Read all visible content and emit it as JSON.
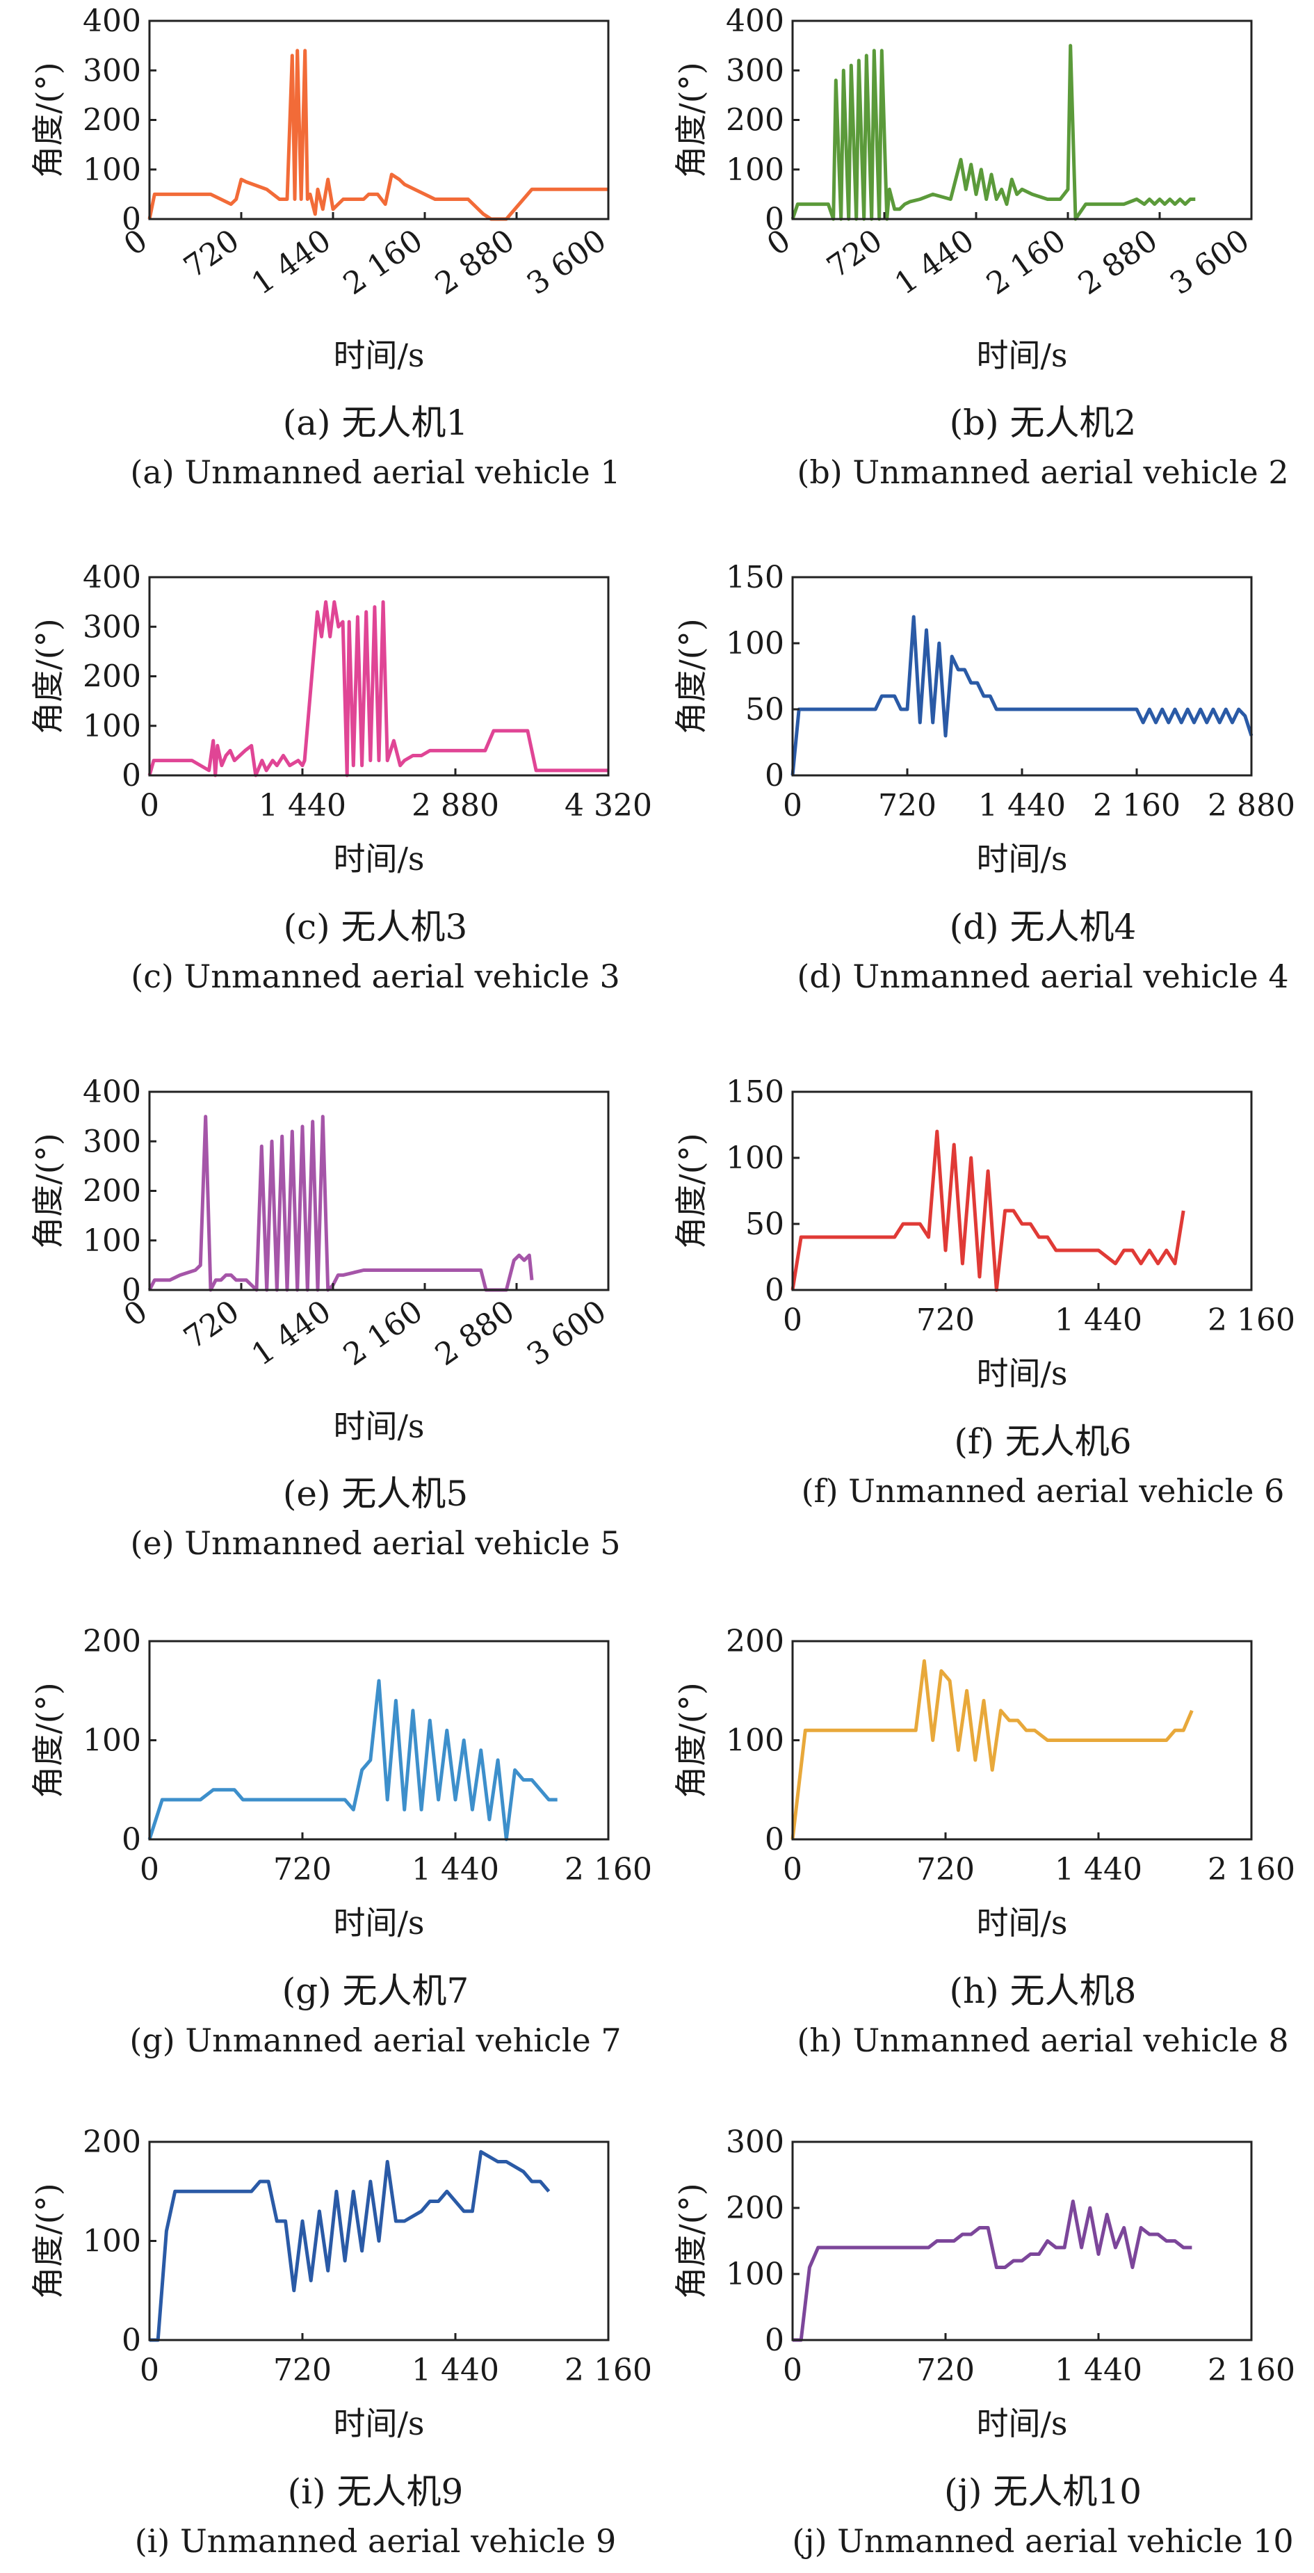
{
  "figure": {
    "panels": [
      {
        "caption_cn": "(a) 无人机1",
        "caption_en": "(a) Unmanned aerial vehicle 1"
      },
      {
        "caption_cn": "(b) 无人机2",
        "caption_en": "(b) Unmanned aerial vehicle 2"
      },
      {
        "caption_cn": "(c) 无人机3",
        "caption_en": "(c) Unmanned aerial vehicle 3"
      },
      {
        "caption_cn": "(d) 无人机4",
        "caption_en": "(d) Unmanned aerial vehicle 4"
      },
      {
        "caption_cn": "(e) 无人机5",
        "caption_en": "(e) Unmanned aerial vehicle 5"
      },
      {
        "caption_cn": "(f) 无人机6",
        "caption_en": "(f) Unmanned aerial vehicle 6"
      },
      {
        "caption_cn": "(g) 无人机7",
        "caption_en": "(g) Unmanned aerial vehicle 7"
      },
      {
        "caption_cn": "(h) 无人机8",
        "caption_en": "(h) Unmanned aerial vehicle 8"
      },
      {
        "caption_cn": "(i) 无人机9",
        "caption_en": "(i) Unmanned aerial vehicle 9"
      },
      {
        "caption_cn": "(j) 无人机10",
        "caption_en": "(j) Unmanned aerial vehicle 10"
      }
    ]
  },
  "chart_data": [
    {
      "type": "line",
      "xlabel": "时间/s",
      "ylabel": "角度/(°)",
      "xlim": [
        0,
        3600
      ],
      "ylim": [
        0,
        400
      ],
      "xticks": [
        0,
        720,
        1440,
        2160,
        2880,
        3600
      ],
      "xtick_labels": [
        "0",
        "720",
        "1 440",
        "2 160",
        "2 880",
        "3 600"
      ],
      "yticks": [
        0,
        100,
        200,
        300,
        400
      ],
      "ytick_labels": [
        "0",
        "100",
        "200",
        "300",
        "400"
      ],
      "xtick_rotated": true,
      "color": "#f26b38",
      "x": [
        0,
        40,
        480,
        560,
        640,
        680,
        720,
        760,
        920,
        1020,
        1080,
        1120,
        1140,
        1160,
        1190,
        1220,
        1240,
        1260,
        1300,
        1320,
        1360,
        1400,
        1440,
        1520,
        1600,
        1680,
        1720,
        1750,
        1790,
        1850,
        1900,
        1960,
        2000,
        2080,
        2160,
        2240,
        2320,
        2400,
        2480,
        2500,
        2620,
        2680,
        2800,
        3000,
        3600
      ],
      "y": [
        0,
        50,
        50,
        40,
        30,
        40,
        80,
        75,
        60,
        40,
        40,
        330,
        40,
        340,
        40,
        340,
        40,
        50,
        10,
        60,
        20,
        80,
        20,
        40,
        40,
        40,
        50,
        50,
        50,
        30,
        90,
        80,
        70,
        60,
        50,
        40,
        40,
        40,
        40,
        40,
        10,
        0,
        0,
        60,
        60
      ]
    },
    {
      "type": "line",
      "xlabel": "时间/s",
      "ylabel": "角度/(°)",
      "xlim": [
        0,
        3600
      ],
      "ylim": [
        0,
        400
      ],
      "xticks": [
        0,
        720,
        1440,
        2160,
        2880,
        3600
      ],
      "xtick_labels": [
        "0",
        "720",
        "1 440",
        "2 160",
        "2 880",
        "3 600"
      ],
      "yticks": [
        0,
        100,
        200,
        300,
        400
      ],
      "ytick_labels": [
        "0",
        "100",
        "200",
        "300",
        "400"
      ],
      "xtick_rotated": true,
      "color": "#5b9a3a",
      "x": [
        0,
        40,
        280,
        320,
        340,
        380,
        400,
        440,
        460,
        500,
        520,
        560,
        580,
        620,
        640,
        680,
        700,
        740,
        760,
        800,
        840,
        880,
        920,
        1000,
        1100,
        1240,
        1320,
        1360,
        1400,
        1440,
        1480,
        1520,
        1560,
        1600,
        1640,
        1680,
        1720,
        1760,
        1800,
        1880,
        2000,
        2100,
        2160,
        2180,
        2220,
        2300,
        2400,
        2500,
        2600,
        2700,
        2760,
        2800,
        2840,
        2880,
        2920,
        2960,
        3000,
        3040,
        3080,
        3120,
        3160
      ],
      "y": [
        0,
        30,
        30,
        0,
        280,
        0,
        300,
        0,
        310,
        0,
        320,
        0,
        330,
        0,
        340,
        0,
        340,
        0,
        60,
        20,
        20,
        30,
        35,
        40,
        50,
        40,
        120,
        60,
        110,
        50,
        100,
        40,
        90,
        40,
        60,
        30,
        80,
        50,
        60,
        50,
        40,
        40,
        60,
        350,
        0,
        30,
        30,
        30,
        30,
        40,
        30,
        40,
        30,
        40,
        30,
        40,
        30,
        40,
        30,
        40,
        40
      ]
    },
    {
      "type": "line",
      "xlabel": "时间/s",
      "ylabel": "角度/(°)",
      "xlim": [
        0,
        4320
      ],
      "ylim": [
        0,
        400
      ],
      "xticks": [
        0,
        1440,
        2880,
        4320
      ],
      "xtick_labels": [
        "0",
        "1 440",
        "2 880",
        "4 320"
      ],
      "yticks": [
        0,
        100,
        200,
        300,
        400
      ],
      "ytick_labels": [
        "0",
        "100",
        "200",
        "300",
        "400"
      ],
      "xtick_rotated": false,
      "color": "#e04595",
      "x": [
        0,
        40,
        400,
        560,
        600,
        620,
        640,
        680,
        720,
        760,
        800,
        850,
        900,
        960,
        1000,
        1060,
        1100,
        1160,
        1200,
        1260,
        1320,
        1400,
        1440,
        1460,
        1580,
        1620,
        1660,
        1700,
        1740,
        1780,
        1820,
        1860,
        1880,
        1920,
        1960,
        2000,
        2040,
        2080,
        2120,
        2160,
        2200,
        2240,
        2300,
        2360,
        2400,
        2480,
        2560,
        2640,
        2720,
        2800,
        2880,
        3000,
        3160,
        3240,
        3320,
        3400,
        3560,
        3640,
        4320
      ],
      "y": [
        0,
        30,
        30,
        10,
        70,
        0,
        60,
        20,
        40,
        50,
        30,
        40,
        50,
        60,
        0,
        30,
        10,
        30,
        20,
        40,
        20,
        30,
        20,
        30,
        330,
        280,
        350,
        280,
        350,
        300,
        310,
        0,
        310,
        20,
        320,
        20,
        330,
        30,
        340,
        30,
        350,
        30,
        70,
        20,
        30,
        40,
        40,
        50,
        50,
        50,
        50,
        50,
        50,
        90,
        90,
        90,
        90,
        10,
        10
      ]
    },
    {
      "type": "line",
      "xlabel": "时间/s",
      "ylabel": "角度/(°)",
      "xlim": [
        0,
        2880
      ],
      "ylim": [
        0,
        150
      ],
      "xticks": [
        0,
        720,
        1440,
        2160,
        2880
      ],
      "xtick_labels": [
        "0",
        "720",
        "1 440",
        "2 160",
        "2 880"
      ],
      "yticks": [
        0,
        50,
        100,
        150
      ],
      "ytick_labels": [
        "0",
        "50",
        "100",
        "150"
      ],
      "xtick_rotated": false,
      "color": "#2a5aa6",
      "x": [
        0,
        40,
        520,
        560,
        640,
        680,
        720,
        760,
        800,
        840,
        880,
        920,
        960,
        1000,
        1040,
        1080,
        1120,
        1160,
        1200,
        1240,
        1280,
        1440,
        2160,
        2200,
        2240,
        2280,
        2320,
        2360,
        2400,
        2440,
        2480,
        2520,
        2560,
        2600,
        2640,
        2680,
        2720,
        2760,
        2800,
        2840,
        2880
      ],
      "y": [
        0,
        50,
        50,
        60,
        60,
        50,
        50,
        120,
        40,
        110,
        40,
        100,
        30,
        90,
        80,
        80,
        70,
        70,
        60,
        60,
        50,
        50,
        50,
        40,
        50,
        40,
        50,
        40,
        50,
        40,
        50,
        40,
        50,
        40,
        50,
        40,
        50,
        40,
        50,
        45,
        30
      ]
    },
    {
      "type": "line",
      "xlabel": "时间/s",
      "ylabel": "角度/(°)",
      "xlim": [
        0,
        3600
      ],
      "ylim": [
        0,
        400
      ],
      "xticks": [
        0,
        720,
        1440,
        2160,
        2880,
        3600
      ],
      "xtick_labels": [
        "0",
        "720",
        "1 440",
        "2 160",
        "2 880",
        "3 600"
      ],
      "yticks": [
        0,
        100,
        200,
        300,
        400
      ],
      "ytick_labels": [
        "0",
        "100",
        "200",
        "300",
        "400"
      ],
      "xtick_rotated": true,
      "color": "#a555a8",
      "x": [
        0,
        40,
        160,
        240,
        360,
        400,
        440,
        480,
        520,
        560,
        600,
        640,
        680,
        760,
        840,
        880,
        920,
        960,
        1000,
        1040,
        1080,
        1120,
        1160,
        1200,
        1240,
        1280,
        1320,
        1360,
        1400,
        1440,
        1480,
        1520,
        1680,
        2160,
        2600,
        2640,
        2800,
        2860,
        2900,
        2940,
        2980,
        3000
      ],
      "y": [
        0,
        20,
        20,
        30,
        40,
        50,
        350,
        0,
        20,
        20,
        30,
        30,
        20,
        20,
        0,
        290,
        0,
        300,
        0,
        310,
        0,
        320,
        0,
        330,
        0,
        340,
        0,
        350,
        0,
        10,
        30,
        30,
        40,
        40,
        40,
        0,
        0,
        60,
        70,
        60,
        70,
        20
      ]
    },
    {
      "type": "line",
      "xlabel": "时间/s",
      "ylabel": "角度/(°)",
      "xlim": [
        0,
        2160
      ],
      "ylim": [
        0,
        150
      ],
      "xticks": [
        0,
        720,
        1440,
        2160
      ],
      "xtick_labels": [
        "0",
        "720",
        "1 440",
        "2 160"
      ],
      "yticks": [
        0,
        50,
        100,
        150
      ],
      "ytick_labels": [
        "0",
        "50",
        "100",
        "150"
      ],
      "xtick_rotated": false,
      "color": "#e03a36",
      "x": [
        0,
        40,
        480,
        520,
        600,
        640,
        680,
        720,
        760,
        800,
        840,
        880,
        920,
        960,
        1000,
        1040,
        1080,
        1120,
        1160,
        1200,
        1240,
        1280,
        1440,
        1520,
        1560,
        1600,
        1640,
        1680,
        1720,
        1760,
        1800,
        1840
      ],
      "y": [
        0,
        40,
        40,
        50,
        50,
        40,
        120,
        30,
        110,
        20,
        100,
        10,
        90,
        0,
        60,
        60,
        50,
        50,
        40,
        40,
        30,
        30,
        30,
        20,
        30,
        30,
        20,
        30,
        20,
        30,
        20,
        60
      ]
    },
    {
      "type": "line",
      "xlabel": "时间/s",
      "ylabel": "角度/(°)",
      "xlim": [
        0,
        2160
      ],
      "ylim": [
        0,
        200
      ],
      "xticks": [
        0,
        720,
        1440,
        2160
      ],
      "xtick_labels": [
        "0",
        "720",
        "1 440",
        "2 160"
      ],
      "yticks": [
        0,
        100,
        200
      ],
      "ytick_labels": [
        "0",
        "100",
        "200"
      ],
      "xtick_rotated": false,
      "color": "#3d8fcb",
      "x": [
        0,
        60,
        240,
        300,
        400,
        440,
        920,
        960,
        1000,
        1040,
        1080,
        1120,
        1160,
        1200,
        1240,
        1280,
        1320,
        1360,
        1400,
        1440,
        1480,
        1520,
        1560,
        1600,
        1640,
        1680,
        1720,
        1760,
        1800,
        1840,
        1880,
        1920
      ],
      "y": [
        0,
        40,
        40,
        50,
        50,
        40,
        40,
        30,
        70,
        80,
        160,
        40,
        140,
        30,
        130,
        30,
        120,
        40,
        110,
        40,
        100,
        30,
        90,
        20,
        80,
        0,
        70,
        60,
        60,
        50,
        40,
        40
      ]
    },
    {
      "type": "line",
      "xlabel": "时间/s",
      "ylabel": "角度/(°)",
      "xlim": [
        0,
        2160
      ],
      "ylim": [
        0,
        200
      ],
      "xticks": [
        0,
        720,
        1440,
        2160
      ],
      "xtick_labels": [
        "0",
        "720",
        "1 440",
        "2 160"
      ],
      "yticks": [
        0,
        100,
        200
      ],
      "ytick_labels": [
        "0",
        "100",
        "200"
      ],
      "xtick_rotated": false,
      "color": "#e8a83a",
      "x": [
        0,
        60,
        580,
        620,
        660,
        700,
        740,
        780,
        820,
        860,
        900,
        940,
        980,
        1020,
        1060,
        1100,
        1140,
        1200,
        1280,
        1440,
        1600,
        1760,
        1800,
        1840,
        1880
      ],
      "y": [
        0,
        110,
        110,
        180,
        100,
        170,
        160,
        90,
        150,
        80,
        140,
        70,
        130,
        120,
        120,
        110,
        110,
        100,
        100,
        100,
        100,
        100,
        110,
        110,
        130
      ]
    },
    {
      "type": "line",
      "xlabel": "时间/s",
      "ylabel": "角度/(°)",
      "xlim": [
        0,
        2160
      ],
      "ylim": [
        0,
        200
      ],
      "xticks": [
        0,
        720,
        1440,
        2160
      ],
      "xtick_labels": [
        "0",
        "720",
        "1 440",
        "2 160"
      ],
      "yticks": [
        0,
        100,
        200
      ],
      "ytick_labels": [
        "0",
        "100",
        "200"
      ],
      "xtick_rotated": false,
      "color": "#2a5aa6",
      "x": [
        0,
        40,
        80,
        120,
        480,
        520,
        560,
        600,
        640,
        680,
        720,
        760,
        800,
        840,
        880,
        920,
        960,
        1000,
        1040,
        1080,
        1120,
        1160,
        1200,
        1280,
        1320,
        1360,
        1400,
        1440,
        1480,
        1520,
        1560,
        1640,
        1680,
        1760,
        1800,
        1840,
        1880
      ],
      "y": [
        0,
        0,
        110,
        150,
        150,
        160,
        160,
        120,
        120,
        50,
        120,
        60,
        130,
        70,
        150,
        80,
        150,
        90,
        160,
        100,
        180,
        120,
        120,
        130,
        140,
        140,
        150,
        140,
        130,
        130,
        190,
        180,
        180,
        170,
        160,
        160,
        150
      ]
    },
    {
      "type": "line",
      "xlabel": "时间/s",
      "ylabel": "角度/(°)",
      "xlim": [
        0,
        2160
      ],
      "ylim": [
        0,
        300
      ],
      "xticks": [
        0,
        720,
        1440,
        2160
      ],
      "xtick_labels": [
        "0",
        "720",
        "1 440",
        "2 160"
      ],
      "yticks": [
        0,
        100,
        200,
        300
      ],
      "ytick_labels": [
        "0",
        "100",
        "200",
        "300"
      ],
      "xtick_rotated": false,
      "color": "#7c469a",
      "x": [
        0,
        40,
        80,
        120,
        640,
        680,
        760,
        800,
        840,
        880,
        920,
        960,
        1000,
        1040,
        1080,
        1120,
        1160,
        1200,
        1240,
        1280,
        1320,
        1360,
        1400,
        1440,
        1480,
        1520,
        1560,
        1600,
        1640,
        1680,
        1720,
        1760,
        1800,
        1840,
        1880
      ],
      "y": [
        0,
        0,
        110,
        140,
        140,
        150,
        150,
        160,
        160,
        170,
        170,
        110,
        110,
        120,
        120,
        130,
        130,
        150,
        140,
        140,
        210,
        140,
        200,
        130,
        190,
        140,
        170,
        110,
        170,
        160,
        160,
        150,
        150,
        140,
        140
      ]
    }
  ]
}
